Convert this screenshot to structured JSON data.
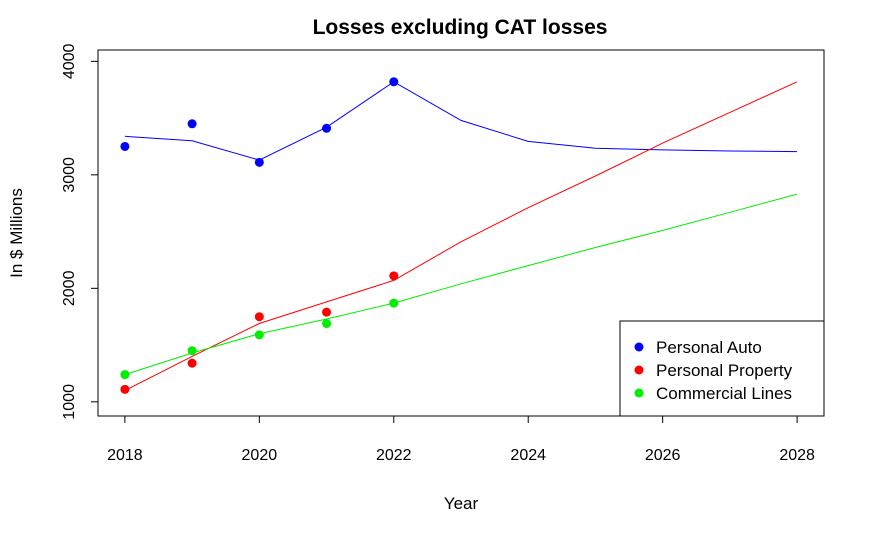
{
  "chart_data": {
    "type": "line",
    "title": "Losses excluding CAT losses",
    "xlabel": "Year",
    "ylabel": "In $ Millions",
    "xlim": [
      2017.6,
      2028.4
    ],
    "ylim": [
      875,
      4100
    ],
    "x_ticks": [
      2018,
      2020,
      2022,
      2024,
      2026,
      2028
    ],
    "y_ticks": [
      1000,
      2000,
      3000,
      4000
    ],
    "grid": false,
    "legend_position": "bottom-right",
    "series": [
      {
        "name": "Personal Auto",
        "color": "#0000ff",
        "points": [
          {
            "x": 2018,
            "y": 3250
          },
          {
            "x": 2019,
            "y": 3450
          },
          {
            "x": 2020,
            "y": 3110
          },
          {
            "x": 2021,
            "y": 3410
          },
          {
            "x": 2022,
            "y": 3820
          }
        ],
        "fit": [
          {
            "x": 2018,
            "y": 3340
          },
          {
            "x": 2019,
            "y": 3300
          },
          {
            "x": 2020,
            "y": 3130
          },
          {
            "x": 2021,
            "y": 3420
          },
          {
            "x": 2022,
            "y": 3820
          },
          {
            "x": 2023,
            "y": 3480
          },
          {
            "x": 2024,
            "y": 3295
          },
          {
            "x": 2025,
            "y": 3235
          },
          {
            "x": 2026,
            "y": 3220
          },
          {
            "x": 2027,
            "y": 3210
          },
          {
            "x": 2028,
            "y": 3205
          }
        ]
      },
      {
        "name": "Personal Property",
        "color": "#ff0000",
        "points": [
          {
            "x": 2018,
            "y": 1110
          },
          {
            "x": 2019,
            "y": 1340
          },
          {
            "x": 2020,
            "y": 1750
          },
          {
            "x": 2021,
            "y": 1790
          },
          {
            "x": 2022,
            "y": 2110
          }
        ],
        "fit": [
          {
            "x": 2018,
            "y": 1100
          },
          {
            "x": 2019,
            "y": 1400
          },
          {
            "x": 2020,
            "y": 1690
          },
          {
            "x": 2021,
            "y": 1880
          },
          {
            "x": 2022,
            "y": 2070
          },
          {
            "x": 2023,
            "y": 2410
          },
          {
            "x": 2024,
            "y": 2710
          },
          {
            "x": 2025,
            "y": 2990
          },
          {
            "x": 2026,
            "y": 3280
          },
          {
            "x": 2027,
            "y": 3550
          },
          {
            "x": 2028,
            "y": 3820
          }
        ]
      },
      {
        "name": "Commercial Lines",
        "color": "#00ee00",
        "points": [
          {
            "x": 2018,
            "y": 1240
          },
          {
            "x": 2019,
            "y": 1450
          },
          {
            "x": 2020,
            "y": 1590
          },
          {
            "x": 2021,
            "y": 1690
          },
          {
            "x": 2022,
            "y": 1870
          }
        ],
        "fit": [
          {
            "x": 2018,
            "y": 1240
          },
          {
            "x": 2019,
            "y": 1430
          },
          {
            "x": 2020,
            "y": 1600
          },
          {
            "x": 2021,
            "y": 1730
          },
          {
            "x": 2022,
            "y": 1870
          },
          {
            "x": 2023,
            "y": 2040
          },
          {
            "x": 2024,
            "y": 2200
          },
          {
            "x": 2025,
            "y": 2360
          },
          {
            "x": 2026,
            "y": 2510
          },
          {
            "x": 2027,
            "y": 2670
          },
          {
            "x": 2028,
            "y": 2830
          }
        ]
      }
    ]
  }
}
